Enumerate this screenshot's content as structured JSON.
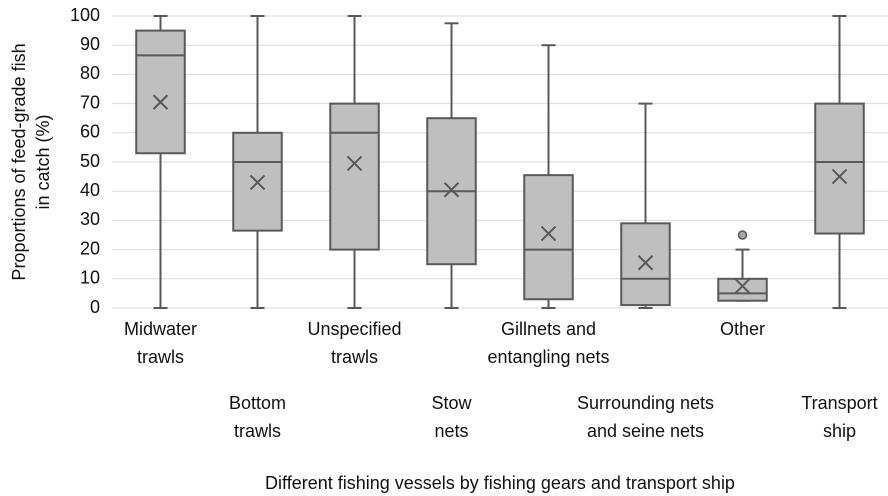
{
  "chart_data": {
    "type": "box",
    "categories": [
      [
        "Midwater",
        "trawls"
      ],
      [
        "Bottom",
        "trawls"
      ],
      [
        "Unspecified",
        "trawls"
      ],
      [
        "Stow",
        "nets"
      ],
      [
        "Gillnets and",
        "entangling nets"
      ],
      [
        "Surrounding nets",
        "and seine nets"
      ],
      [
        "Other"
      ],
      [
        "Transport",
        "ship"
      ]
    ],
    "min": [
      0,
      0,
      0,
      0,
      0,
      0,
      2.5,
      0
    ],
    "q1": [
      53,
      26.5,
      20,
      15,
      3,
      1,
      2.5,
      25.5
    ],
    "median": [
      86.5,
      50,
      60,
      40,
      20,
      10,
      5,
      50
    ],
    "q3": [
      95,
      60,
      70,
      65,
      45.5,
      29,
      10,
      70
    ],
    "max": [
      100,
      100,
      100,
      97.5,
      90,
      70,
      20,
      100
    ],
    "mean": [
      70.5,
      43,
      49.5,
      40.5,
      25.5,
      15.5,
      7.5,
      45
    ],
    "outliers": [
      [],
      [],
      [],
      [],
      [],
      [],
      [
        25
      ],
      []
    ],
    "color": "#bfbfbf",
    "ylim": [
      0,
      100
    ],
    "yticks": [
      0,
      10,
      20,
      30,
      40,
      50,
      60,
      70,
      80,
      90,
      100
    ],
    "grid": true,
    "ylabel": [
      "Proportions of feed-grade fish",
      "in catch (%)"
    ],
    "xlabel": "Different fishing vessels by fishing gears and transport ship"
  }
}
